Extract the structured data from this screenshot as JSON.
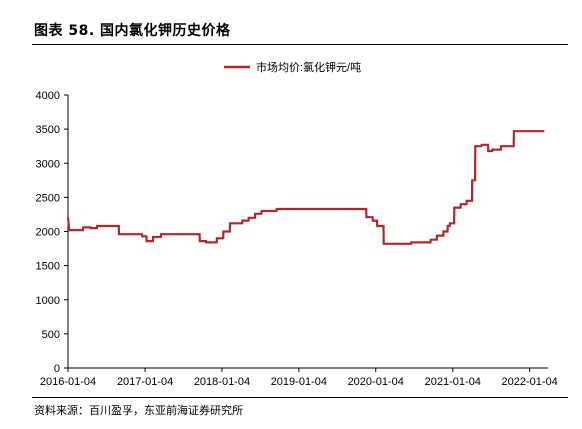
{
  "figure": {
    "title": "图表 58. 国内氯化钾历史价格",
    "source": "资料来源：百川盈孚，东亚前海证券研究所"
  },
  "chart_data": {
    "type": "line",
    "title": "",
    "xlabel": "",
    "ylabel": "",
    "legend_position": "top-center",
    "grid": false,
    "ylim": [
      0,
      4000
    ],
    "yticks": [
      0,
      500,
      1000,
      1500,
      2000,
      2500,
      3000,
      3500,
      4000
    ],
    "ytick_labels": [
      "0",
      "500",
      "1000",
      "1500",
      "2000",
      "2500",
      "3000",
      "3500",
      "4000"
    ],
    "xlim": [
      "2016-01-04",
      "2022-04-01"
    ],
    "xtick_labels": [
      "2016-01-04",
      "2017-01-04",
      "2018-01-04",
      "2019-01-04",
      "2020-01-04",
      "2021-01-04",
      "2022-01-04"
    ],
    "series": [
      {
        "name": "市场均价:氯化钾元/吨",
        "color": "#b0282e",
        "x": [
          "2016-01-04",
          "2016-01-10",
          "2016-01-15",
          "2016-03-15",
          "2016-03-16",
          "2016-04-20",
          "2016-04-21",
          "2016-05-20",
          "2016-05-21",
          "2016-09-01",
          "2016-09-02",
          "2016-12-20",
          "2016-12-21",
          "2017-01-10",
          "2017-01-11",
          "2017-02-10",
          "2017-02-11",
          "2017-03-20",
          "2017-03-21",
          "2017-09-20",
          "2017-09-21",
          "2017-10-20",
          "2017-10-21",
          "2017-12-10",
          "2017-12-11",
          "2018-01-10",
          "2018-01-11",
          "2018-02-10",
          "2018-02-11",
          "2018-04-10",
          "2018-04-11",
          "2018-05-10",
          "2018-05-11",
          "2018-06-10",
          "2018-06-11",
          "2018-07-10",
          "2018-07-11",
          "2018-09-20",
          "2018-09-21",
          "2019-11-20",
          "2019-11-21",
          "2019-12-20",
          "2019-12-21",
          "2020-01-10",
          "2020-01-11",
          "2020-02-10",
          "2020-02-11",
          "2020-06-20",
          "2020-06-21",
          "2020-09-20",
          "2020-09-21",
          "2020-10-20",
          "2020-10-21",
          "2020-11-20",
          "2020-11-21",
          "2020-12-10",
          "2020-12-11",
          "2020-12-20",
          "2020-12-21",
          "2021-01-10",
          "2021-01-11",
          "2021-02-10",
          "2021-02-11",
          "2021-03-10",
          "2021-03-11",
          "2021-04-05",
          "2021-04-06",
          "2021-04-20",
          "2021-04-21",
          "2021-05-20",
          "2021-05-21",
          "2021-06-20",
          "2021-06-21",
          "2021-07-10",
          "2021-07-11",
          "2021-08-20",
          "2021-08-21",
          "2021-10-20",
          "2021-10-21",
          "2022-03-15"
        ],
        "values": [
          2200,
          2020,
          2020,
          2020,
          2060,
          2060,
          2050,
          2050,
          2080,
          2080,
          1960,
          1960,
          1930,
          1930,
          1860,
          1860,
          1920,
          1920,
          1960,
          1960,
          1860,
          1860,
          1840,
          1840,
          1900,
          1900,
          2000,
          2000,
          2120,
          2120,
          2160,
          2160,
          2200,
          2200,
          2260,
          2260,
          2300,
          2300,
          2330,
          2330,
          2210,
          2210,
          2160,
          2160,
          2080,
          2080,
          1820,
          1820,
          1840,
          1840,
          1880,
          1880,
          1940,
          1940,
          2000,
          2000,
          2080,
          2080,
          2120,
          2120,
          2350,
          2350,
          2400,
          2400,
          2450,
          2450,
          2750,
          2750,
          3250,
          3250,
          3270,
          3270,
          3180,
          3180,
          3200,
          3200,
          3250,
          3250,
          3470,
          3470
        ]
      }
    ]
  }
}
